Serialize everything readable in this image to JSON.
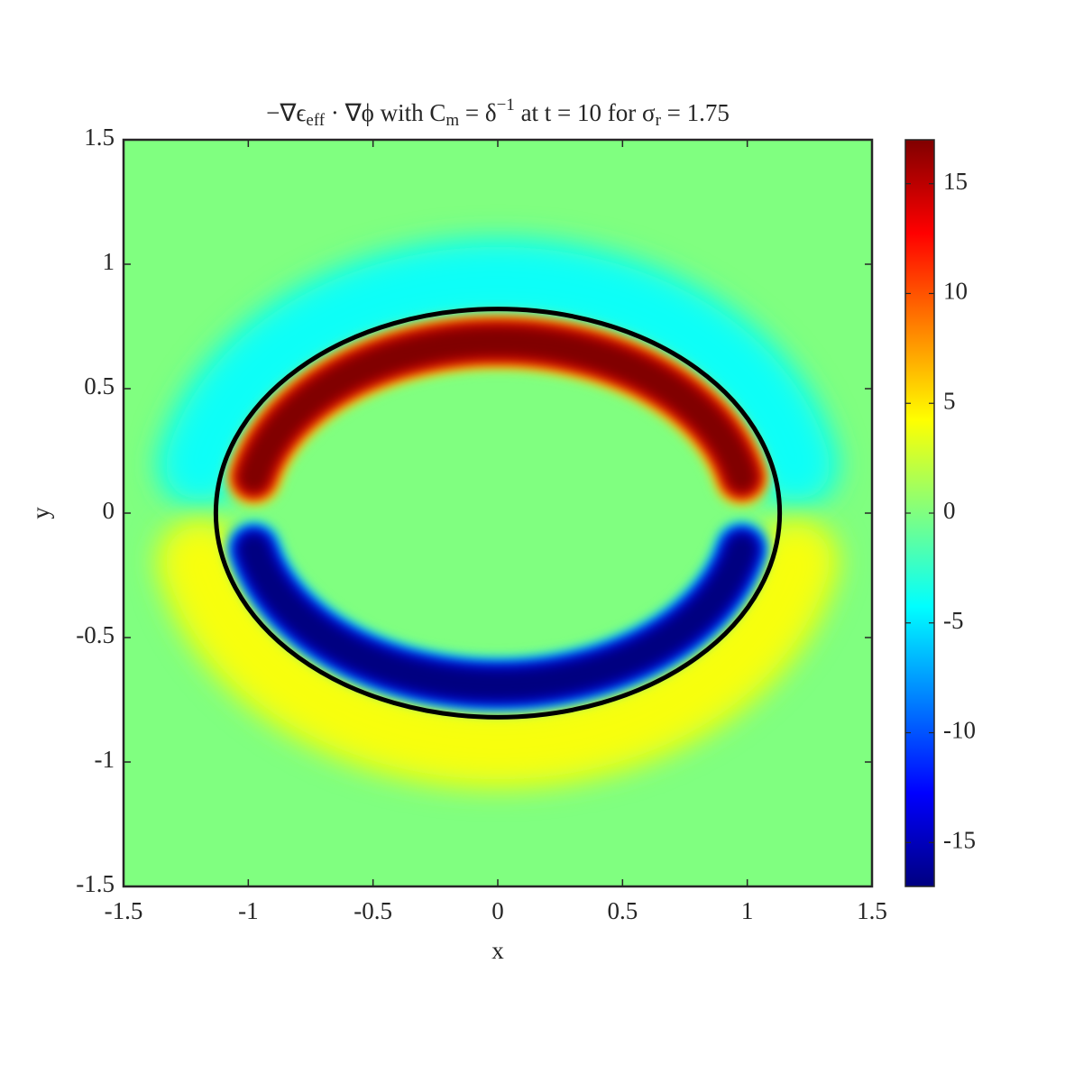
{
  "chart_data": {
    "type": "heatmap",
    "title": "−∇ϵ_{eff} · ∇ϕ with C_{m} = δ^{−1} at t = 10 for σ_{r} = 1.75",
    "xlabel": "x",
    "ylabel": "y",
    "xlim": [
      -1.5,
      1.5
    ],
    "ylim": [
      -1.5,
      1.5
    ],
    "xticks": [
      -1.5,
      -1,
      -0.5,
      0,
      0.5,
      1,
      1.5
    ],
    "yticks": [
      -1.5,
      -1,
      -0.5,
      0,
      0.5,
      1,
      1.5
    ],
    "colormap": "jet",
    "clim": [
      -17,
      17
    ],
    "cticks": [
      -15,
      -10,
      -5,
      0,
      5,
      10,
      15
    ],
    "background_value": 0,
    "bands": [
      {
        "side": "upper",
        "value": -4,
        "rx": 1.22,
        "ry": 0.93,
        "width": 0.28
      },
      {
        "side": "lower",
        "value": 4,
        "rx": 1.22,
        "ry": 0.93,
        "width": 0.28
      },
      {
        "side": "upper",
        "value": 17,
        "rx": 1.0,
        "ry": 0.69,
        "width": 0.13
      },
      {
        "side": "lower",
        "value": -17,
        "rx": 1.0,
        "ry": 0.69,
        "width": 0.13
      }
    ],
    "ellipse": {
      "rx": 1.13,
      "ry": 0.82,
      "color": "#000000"
    }
  }
}
